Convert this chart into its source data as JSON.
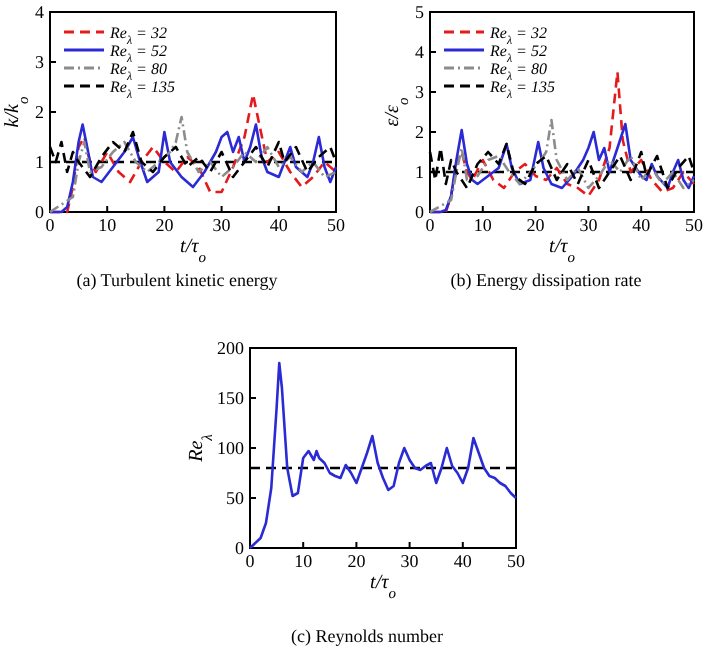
{
  "chart_data": [
    {
      "type": "line",
      "title": "(a) Turbulent kinetic energy",
      "xlabel": "t/τ$_{o}$",
      "ylabel": "k/k$_{o}$",
      "xlim": [
        0,
        50
      ],
      "ylim": [
        0,
        4
      ],
      "xticks": [
        0,
        10,
        20,
        30,
        40,
        50
      ],
      "yticks": [
        0,
        1,
        2,
        3,
        4
      ],
      "legend": "top left",
      "ref_lines": [
        {
          "axis": "y",
          "value": 1,
          "color": "#000000",
          "line_style": "dashed"
        }
      ],
      "series": [
        {
          "name": "Re$_{λ}$ = 32",
          "color": "#e41a1c",
          "line_style": "dashed",
          "x": [
            0,
            3,
            4,
            5,
            6,
            7,
            8,
            10,
            12,
            14,
            16,
            18,
            20,
            22,
            24,
            26,
            28,
            30,
            32,
            34,
            35.5,
            36.5,
            38,
            40,
            42,
            44,
            46,
            48,
            50
          ],
          "values": [
            0,
            0,
            0.5,
            1.3,
            1.5,
            1.0,
            0.8,
            1.2,
            0.8,
            0.6,
            1.0,
            1.3,
            1.0,
            0.8,
            1.1,
            0.9,
            0.4,
            0.4,
            0.9,
            1.5,
            2.35,
            1.8,
            1.0,
            1.2,
            0.8,
            0.5,
            0.7,
            1.0,
            0.8
          ]
        },
        {
          "name": "Re$_{λ}$ = 52",
          "color": "#2b2bd6",
          "line_style": "solid",
          "x": [
            0,
            2,
            3,
            4,
            5,
            5.7,
            6.5,
            7.5,
            9,
            11,
            13,
            14.5,
            15.5,
            17,
            19,
            20,
            21,
            23,
            25,
            27,
            29,
            30,
            31,
            32,
            33,
            34,
            35,
            36,
            37,
            38,
            40,
            41,
            42,
            43,
            45,
            46,
            47,
            48,
            49,
            50
          ],
          "values": [
            0,
            0,
            0.1,
            0.6,
            1.4,
            1.75,
            1.3,
            0.7,
            0.6,
            0.9,
            1.2,
            1.5,
            1.1,
            0.6,
            0.8,
            1.6,
            1.0,
            0.7,
            0.5,
            0.8,
            1.2,
            1.5,
            1.6,
            1.2,
            1.5,
            1.0,
            1.3,
            1.75,
            1.1,
            0.8,
            0.7,
            1.0,
            1.3,
            0.9,
            0.7,
            1.0,
            1.5,
            0.9,
            0.6,
            0.9
          ]
        },
        {
          "name": "Re$_{λ}$ = 80",
          "color": "#8c8c8c",
          "line_style": "dotted",
          "x": [
            0,
            4,
            5,
            6,
            7,
            9,
            11,
            13,
            15,
            17,
            19,
            21,
            22,
            23,
            24,
            26,
            28,
            30,
            32,
            34,
            36,
            38,
            40,
            42,
            44,
            46,
            48,
            50
          ],
          "values": [
            0,
            0.3,
            1.0,
            1.4,
            0.8,
            0.9,
            1.2,
            1.4,
            1.0,
            0.8,
            1.0,
            1.2,
            1.4,
            1.9,
            1.2,
            0.8,
            1.0,
            0.7,
            0.9,
            1.2,
            1.0,
            1.3,
            0.9,
            1.1,
            0.8,
            1.0,
            0.7,
            0.8
          ]
        },
        {
          "name": "Re$_{λ}$ = 135",
          "color": "#000000",
          "line_style": "dashed",
          "x": [
            0,
            1,
            2,
            3,
            4,
            5,
            7,
            9,
            11,
            13,
            14.5,
            16,
            18,
            20,
            22,
            24,
            26,
            28,
            30,
            32,
            34,
            36,
            38,
            40,
            41,
            43,
            45,
            47,
            49,
            50
          ],
          "values": [
            1.3,
            1.0,
            1.4,
            0.8,
            1.2,
            1.0,
            0.7,
            1.1,
            1.4,
            1.2,
            1.6,
            1.0,
            0.8,
            1.1,
            1.3,
            0.9,
            1.1,
            0.8,
            1.2,
            0.7,
            1.0,
            1.3,
            0.9,
            1.4,
            1.0,
            1.3,
            0.8,
            1.1,
            1.3,
            1.0
          ]
        }
      ]
    },
    {
      "type": "line",
      "title": "(b) Energy dissipation rate",
      "xlabel": "t/τ$_{o}$",
      "ylabel": "ε/ε$_{o}$",
      "xlim": [
        0,
        50
      ],
      "ylim": [
        0,
        5
      ],
      "xticks": [
        0,
        10,
        20,
        30,
        40,
        50
      ],
      "yticks": [
        0,
        1,
        2,
        3,
        4,
        5
      ],
      "legend": "top left",
      "ref_lines": [
        {
          "axis": "y",
          "value": 1,
          "color": "#000000",
          "line_style": "dashed"
        }
      ],
      "series": [
        {
          "name": "Re$_{λ}$ = 32",
          "color": "#e41a1c",
          "line_style": "dashed",
          "x": [
            0,
            3,
            4,
            5,
            6,
            7,
            8,
            10,
            12,
            14,
            16,
            18,
            20,
            22,
            24,
            26,
            28,
            30,
            32,
            34,
            35.5,
            36.5,
            38,
            40,
            42,
            44,
            46,
            48,
            50
          ],
          "values": [
            0,
            0,
            0.4,
            1.2,
            1.5,
            1.0,
            0.8,
            1.3,
            0.8,
            0.6,
            1.0,
            1.2,
            0.9,
            0.8,
            1.1,
            0.7,
            0.6,
            0.4,
            0.8,
            1.6,
            3.5,
            1.8,
            1.0,
            1.3,
            0.8,
            0.5,
            0.6,
            1.0,
            0.7
          ]
        },
        {
          "name": "Re$_{λ}$ = 52",
          "color": "#2b2bd6",
          "line_style": "solid",
          "x": [
            0,
            2,
            3,
            4,
            5,
            6,
            7,
            8,
            9,
            11,
            13,
            14.5,
            15.5,
            17,
            19,
            20.5,
            21.5,
            23,
            25,
            27,
            29,
            30,
            31,
            32,
            33,
            34,
            35,
            36,
            37,
            38,
            40,
            41,
            42,
            43,
            45,
            46,
            47,
            48,
            49,
            50
          ],
          "values": [
            0,
            0,
            0.05,
            0.4,
            1.3,
            2.05,
            1.2,
            0.8,
            0.7,
            0.9,
            1.1,
            1.7,
            1.1,
            0.7,
            0.8,
            1.75,
            1.1,
            0.7,
            0.6,
            0.9,
            1.3,
            1.6,
            2.0,
            1.3,
            1.6,
            1.0,
            1.4,
            1.8,
            2.2,
            1.3,
            0.9,
            0.8,
            1.2,
            0.9,
            0.6,
            1.0,
            1.3,
            0.8,
            0.6,
            0.9
          ]
        },
        {
          "name": "Re$_{λ}$ = 80",
          "color": "#8c8c8c",
          "line_style": "dotted",
          "x": [
            0,
            4,
            5,
            6,
            7,
            9,
            11,
            13,
            15,
            17,
            19,
            21,
            22,
            23,
            24,
            26,
            28,
            30,
            32,
            34,
            36,
            38,
            40,
            42,
            44,
            46,
            48,
            50
          ],
          "values": [
            0,
            0.3,
            1.0,
            1.6,
            0.8,
            0.9,
            1.3,
            1.4,
            1.0,
            0.7,
            1.0,
            1.3,
            1.5,
            2.3,
            1.3,
            0.8,
            1.1,
            0.6,
            0.9,
            1.3,
            1.0,
            1.4,
            0.8,
            1.1,
            0.7,
            1.0,
            0.6,
            0.8
          ]
        },
        {
          "name": "Re$_{λ}$ = 135",
          "color": "#000000",
          "line_style": "dashed",
          "x": [
            0,
            1,
            2,
            3,
            4,
            5,
            7,
            9,
            11,
            13,
            14.5,
            16,
            18,
            20,
            22,
            24,
            26,
            28,
            30,
            32,
            34,
            36,
            38,
            40,
            41,
            43,
            45,
            47,
            49,
            50
          ],
          "values": [
            1.5,
            0.8,
            1.6,
            0.7,
            1.3,
            1.0,
            0.6,
            1.2,
            1.5,
            1.2,
            1.7,
            0.9,
            0.7,
            1.2,
            1.4,
            0.8,
            1.2,
            0.7,
            1.3,
            0.6,
            1.0,
            1.4,
            0.8,
            1.5,
            0.9,
            1.4,
            0.6,
            1.1,
            1.4,
            1.0
          ]
        }
      ]
    },
    {
      "type": "line",
      "title": "(c) Reynolds number",
      "xlabel": "t/τ$_{o}$",
      "ylabel": "Re$_{λ}$",
      "xlim": [
        0,
        50
      ],
      "ylim": [
        0,
        200
      ],
      "xticks": [
        0,
        10,
        20,
        30,
        40,
        50
      ],
      "yticks": [
        0,
        50,
        100,
        150,
        200
      ],
      "ref_lines": [
        {
          "axis": "y",
          "value": 80,
          "color": "#000000",
          "line_style": "dashed"
        }
      ],
      "series": [
        {
          "color": "#2b2bd6",
          "line_style": "solid",
          "x": [
            0,
            2,
            3,
            4,
            5,
            5.5,
            6,
            7,
            8,
            9,
            10,
            11,
            12,
            12.5,
            13,
            14,
            15,
            16,
            17,
            18,
            19,
            20,
            21,
            22,
            23,
            24,
            25,
            26,
            27,
            28,
            29,
            30,
            31,
            32,
            33,
            34,
            35,
            36,
            37,
            38,
            39,
            40,
            41,
            42,
            43,
            44,
            45,
            46,
            47,
            48,
            49,
            50
          ],
          "values": [
            0,
            10,
            25,
            60,
            140,
            185,
            160,
            80,
            52,
            55,
            90,
            97,
            88,
            97,
            90,
            85,
            75,
            72,
            70,
            83,
            75,
            65,
            80,
            95,
            112,
            85,
            70,
            58,
            62,
            85,
            100,
            88,
            80,
            78,
            82,
            85,
            65,
            80,
            100,
            82,
            75,
            65,
            80,
            110,
            95,
            80,
            72,
            70,
            65,
            62,
            55,
            50
          ]
        }
      ]
    }
  ]
}
